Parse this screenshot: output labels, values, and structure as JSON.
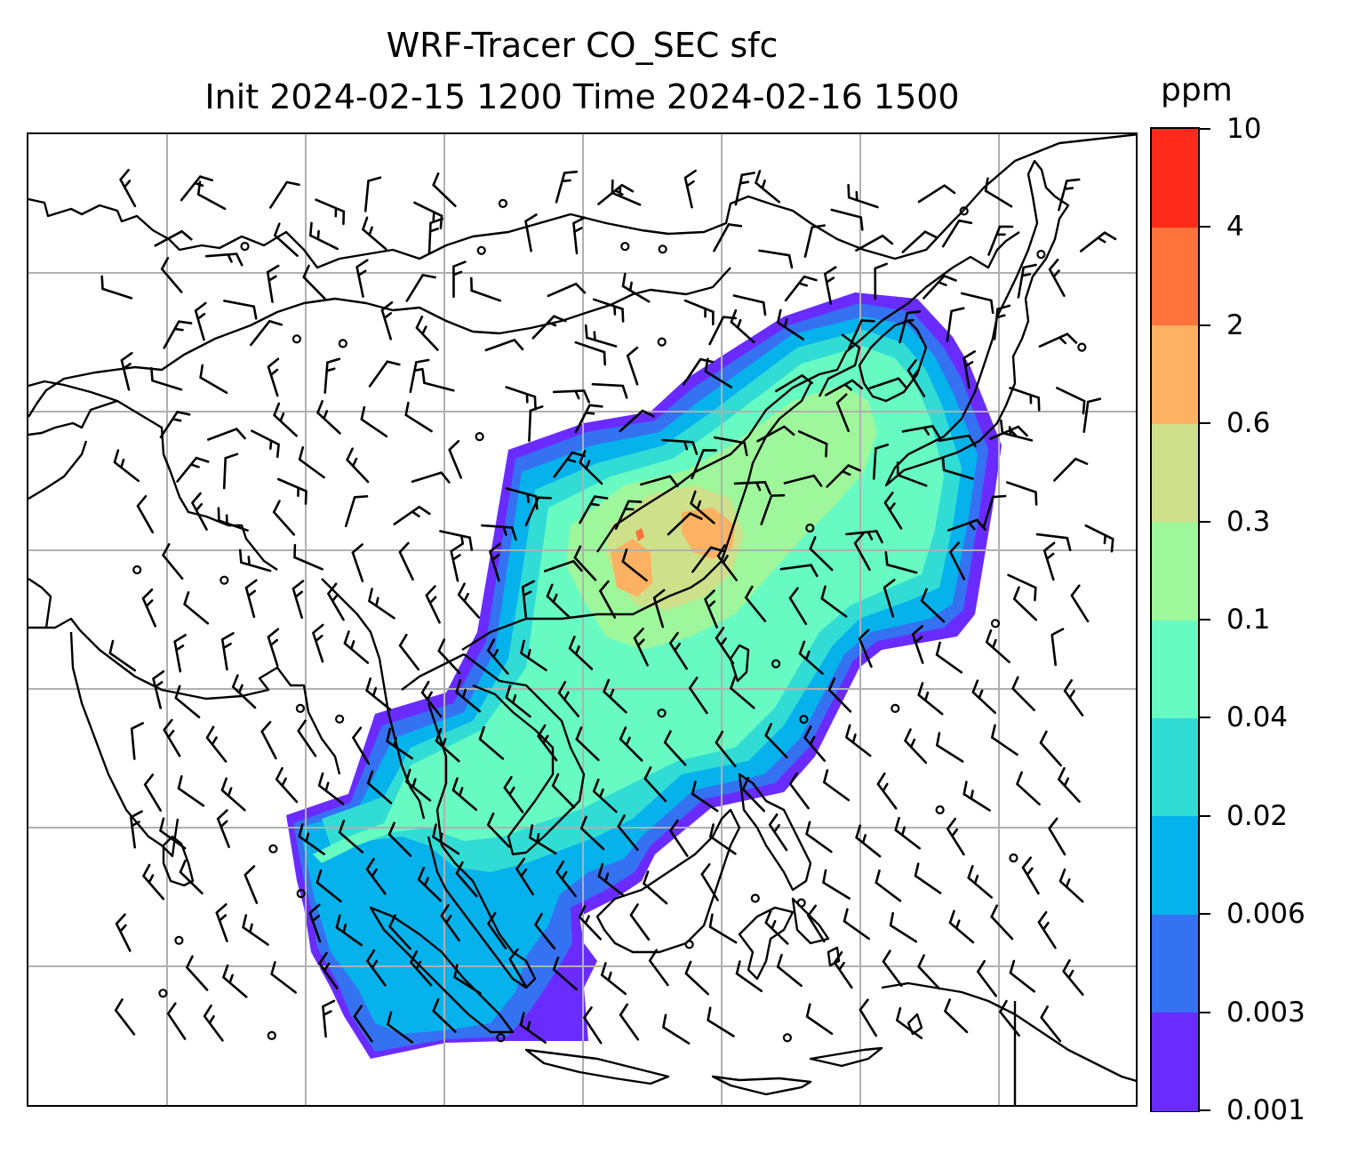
{
  "title": {
    "line1": "WRF-Tracer CO_SEC sfc",
    "line2": "Init 2024-02-15 1200 Time 2024-02-16 1500"
  },
  "colorbar": {
    "units_label": "ppm",
    "ticks": [
      "0.001",
      "0.003",
      "0.006",
      "0.02",
      "0.04",
      "0.1",
      "0.3",
      "0.6",
      "2",
      "4",
      "10"
    ],
    "colors": [
      "#6a2bff",
      "#3472f2",
      "#06b2ec",
      "#31dcd5",
      "#67fbc3",
      "#9ef79a",
      "#cfe08a",
      "#fdb162",
      "#fe723c",
      "#fe2a1a"
    ]
  },
  "map": {
    "field": "CO_SEC",
    "level": "sfc",
    "gridlines": true,
    "colors": {
      "coastline": "#000000",
      "gridline": "#b0b0b0",
      "wind_barb": "#000000"
    }
  },
  "icons": {
    "wind_barb": "wind-barb-icon",
    "calm_wind": "calm-wind-circle-icon"
  }
}
